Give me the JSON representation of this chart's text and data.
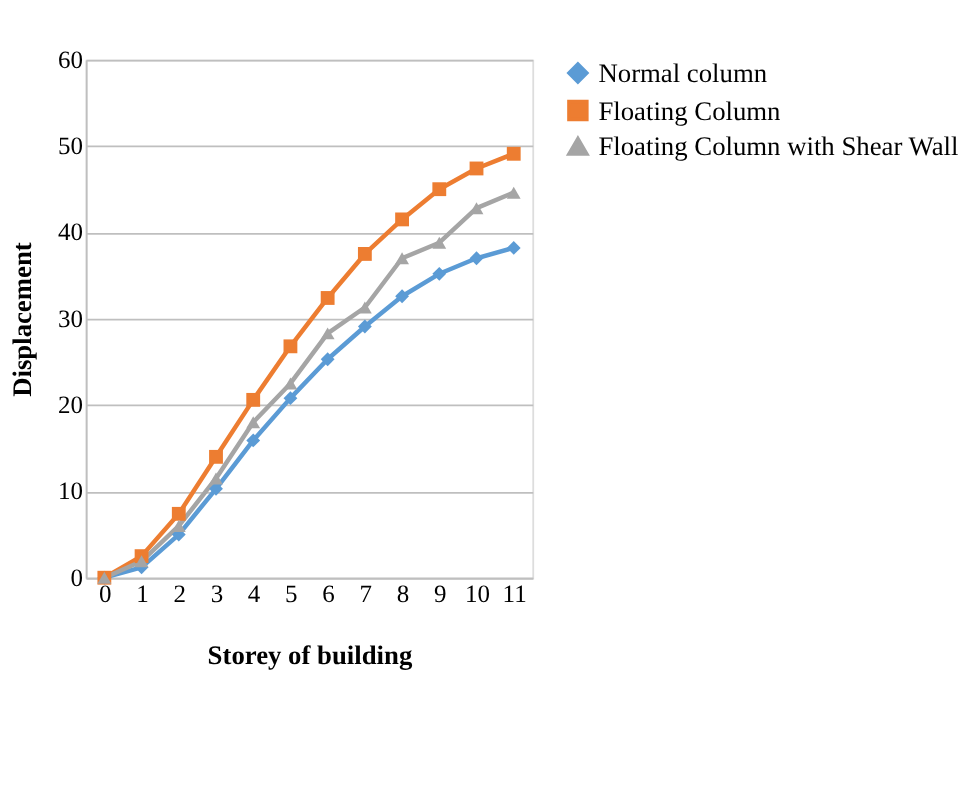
{
  "chart_data": {
    "type": "line",
    "xlabel": "Storey of building",
    "ylabel": "Displacement",
    "categories": [
      "0",
      "1",
      "2",
      "3",
      "4",
      "5",
      "6",
      "7",
      "8",
      "9",
      "10",
      "11"
    ],
    "series": [
      {
        "name": "Normal column",
        "color": "#5b9bd5",
        "marker": "diamond",
        "values": [
          0,
          1.2,
          5,
          10.3,
          15.9,
          20.8,
          25.3,
          29.1,
          32.6,
          35.2,
          37,
          38.2
        ]
      },
      {
        "name": "Floating Column",
        "color": "#ed7d31",
        "marker": "square",
        "values": [
          0,
          2.5,
          7.4,
          14,
          20.6,
          26.8,
          32.4,
          37.5,
          41.5,
          45,
          47.4,
          49.1
        ]
      },
      {
        "name": "Floating Column with Shear Wall",
        "color": "#a5a5a5",
        "marker": "triangle",
        "values": [
          0,
          1.9,
          6,
          11.5,
          18,
          22.5,
          28.3,
          31.3,
          37,
          38.8,
          42.8,
          44.6
        ]
      }
    ],
    "ylim": [
      0,
      60
    ],
    "yticks": [
      0,
      10,
      20,
      30,
      40,
      50,
      60
    ],
    "grid": "y",
    "legend": "right"
  }
}
